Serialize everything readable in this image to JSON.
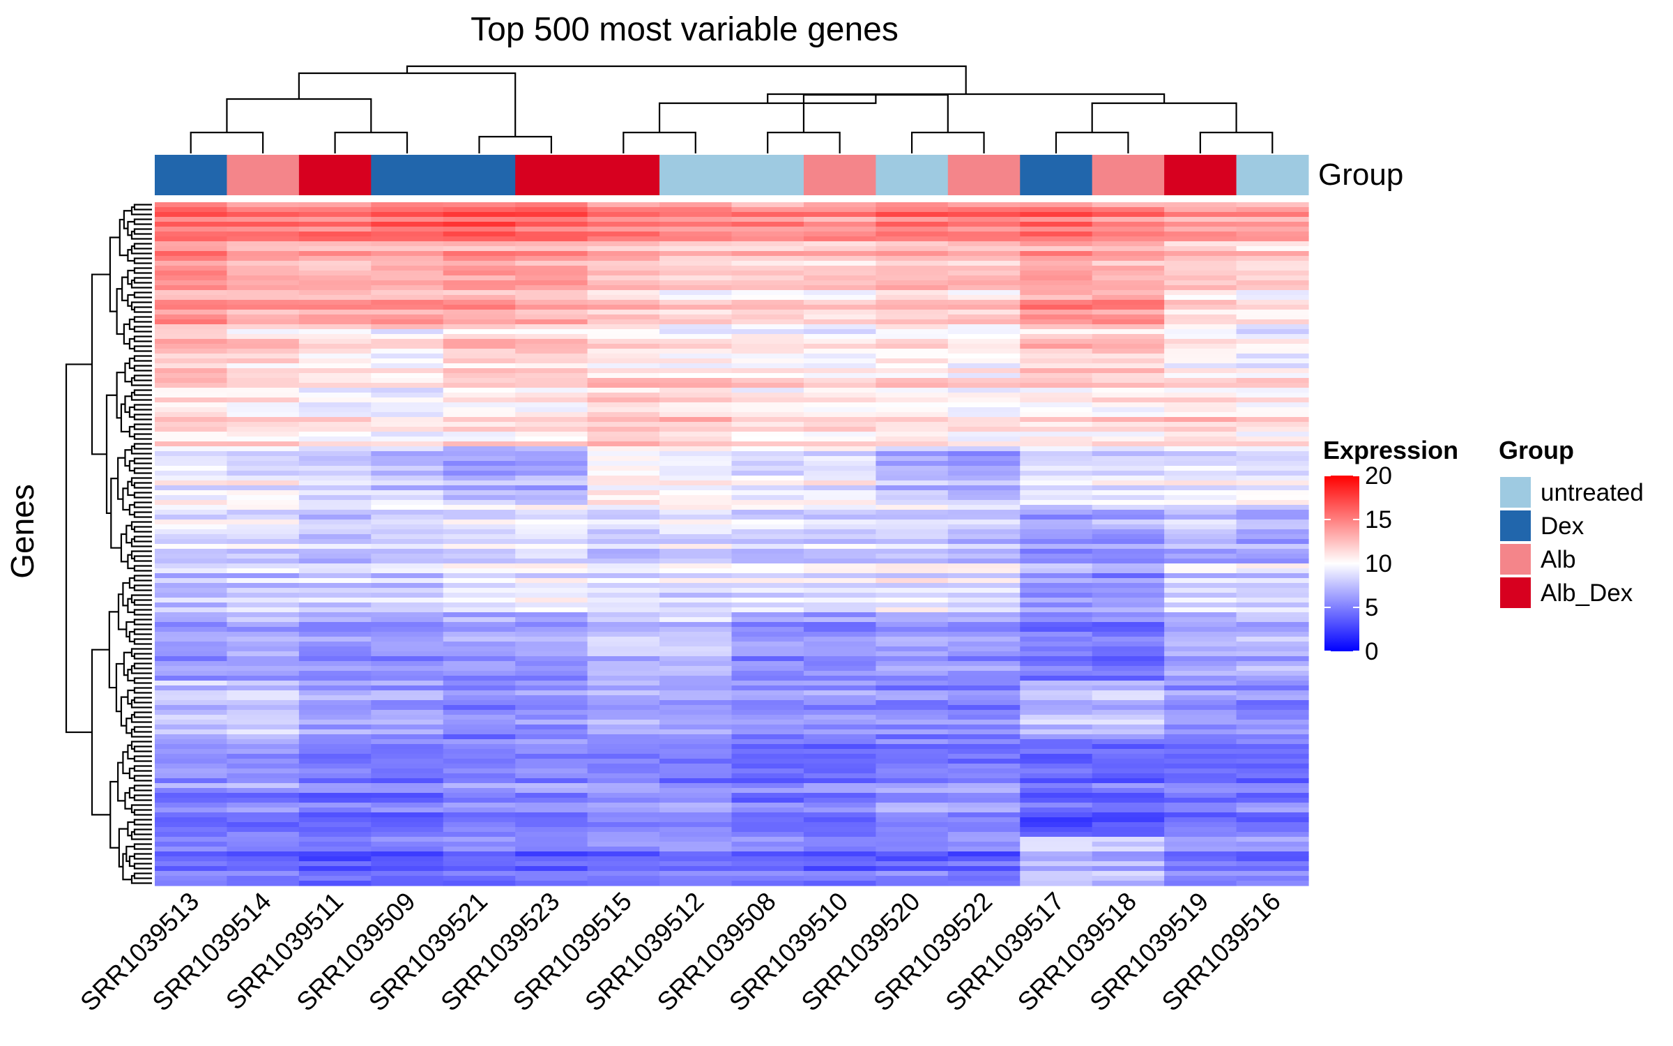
{
  "chart_data": {
    "type": "heatmap",
    "title": "Top 500 most variable genes",
    "ylabel": "Genes",
    "samples": [
      "SRR1039513",
      "SRR1039514",
      "SRR1039511",
      "SRR1039509",
      "SRR1039521",
      "SRR1039523",
      "SRR1039515",
      "SRR1039512",
      "SRR1039508",
      "SRR1039510",
      "SRR1039520",
      "SRR1039522",
      "SRR1039517",
      "SRR1039518",
      "SRR1039519",
      "SRR1039516"
    ],
    "sample_groups": [
      "Dex",
      "Alb",
      "Alb_Dex",
      "Dex",
      "Dex",
      "Alb_Dex",
      "Alb_Dex",
      "untreated",
      "untreated",
      "Alb",
      "untreated",
      "Alb",
      "Dex",
      "Alb",
      "Alb_Dex",
      "untreated"
    ],
    "annotation_track_label": "Group",
    "group_legend": {
      "title": "Group",
      "entries": [
        {
          "label": "untreated",
          "color": "#9ECAE1"
        },
        {
          "label": "Dex",
          "color": "#2166AC"
        },
        {
          "label": "Alb",
          "color": "#F4858A"
        },
        {
          "label": "Alb_Dex",
          "color": "#D7001F"
        }
      ]
    },
    "color_scale": {
      "title": "Expression",
      "min": 0,
      "max": 20,
      "ticks": [
        0,
        5,
        10,
        15,
        20
      ],
      "low_color": "#0000FF",
      "mid_color": "#FFFFFF",
      "high_color": "#FF0000",
      "midpoint": 10
    },
    "n_genes_rendered": 140,
    "row_blocks": [
      {
        "rows": 8,
        "base": [
          16.0,
          15.0,
          15.5,
          16.0,
          16.5,
          16.0,
          15.0,
          14.5,
          14.5,
          14.5,
          15.5,
          15.5,
          15.5,
          15.0,
          14.0,
          14.0
        ]
      },
      {
        "rows": 10,
        "base": [
          14.5,
          13.5,
          13.0,
          13.5,
          14.0,
          14.0,
          13.0,
          12.5,
          12.5,
          12.5,
          13.5,
          13.0,
          14.0,
          13.5,
          12.5,
          12.0
        ]
      },
      {
        "rows": 8,
        "base": [
          14.0,
          13.0,
          13.5,
          13.5,
          13.5,
          13.0,
          12.0,
          11.0,
          11.5,
          11.0,
          12.0,
          11.5,
          14.0,
          14.0,
          11.5,
          10.5
        ]
      },
      {
        "rows": 10,
        "base": [
          12.5,
          11.5,
          10.5,
          10.0,
          12.0,
          12.0,
          11.0,
          10.5,
          10.5,
          10.0,
          10.5,
          10.0,
          12.0,
          12.0,
          10.5,
          9.5
        ]
      },
      {
        "rows": 14,
        "base": [
          11.5,
          11.0,
          10.5,
          10.0,
          11.0,
          11.0,
          12.0,
          12.0,
          11.0,
          11.0,
          11.0,
          10.5,
          11.0,
          11.0,
          11.5,
          11.0
        ]
      },
      {
        "rows": 12,
        "base": [
          9.5,
          9.5,
          8.5,
          8.0,
          7.0,
          7.0,
          10.5,
          10.0,
          9.5,
          9.5,
          7.5,
          7.0,
          9.0,
          9.0,
          9.5,
          9.5
        ]
      },
      {
        "rows": 12,
        "base": [
          9.0,
          9.0,
          8.0,
          8.5,
          9.0,
          9.5,
          8.5,
          9.0,
          8.5,
          8.5,
          8.5,
          8.0,
          6.5,
          6.5,
          7.5,
          7.0
        ]
      },
      {
        "rows": 10,
        "base": [
          7.5,
          8.0,
          8.0,
          8.0,
          9.0,
          9.5,
          8.5,
          8.5,
          9.0,
          8.5,
          9.5,
          9.0,
          6.0,
          6.0,
          8.5,
          8.5
        ]
      },
      {
        "rows": 14,
        "base": [
          6.0,
          6.5,
          5.5,
          5.5,
          6.0,
          6.0,
          7.5,
          7.5,
          5.5,
          5.5,
          6.0,
          6.0,
          4.5,
          4.5,
          6.5,
          7.0
        ]
      },
      {
        "rows": 12,
        "base": [
          8.0,
          8.0,
          6.5,
          6.5,
          5.5,
          5.5,
          6.5,
          6.5,
          6.0,
          6.0,
          5.5,
          5.5,
          7.5,
          7.5,
          6.0,
          5.5
        ]
      },
      {
        "rows": 10,
        "base": [
          6.0,
          6.0,
          5.0,
          5.0,
          5.5,
          5.5,
          5.5,
          5.0,
          4.5,
          4.5,
          5.0,
          5.0,
          4.5,
          4.5,
          4.5,
          4.5
        ]
      },
      {
        "rows": 10,
        "base": [
          5.0,
          5.0,
          4.5,
          4.5,
          5.5,
          5.5,
          6.0,
          6.0,
          5.0,
          5.0,
          6.0,
          6.0,
          4.0,
          4.0,
          5.0,
          5.0
        ]
      },
      {
        "rows": 10,
        "base": [
          4.5,
          4.5,
          4.0,
          4.0,
          4.5,
          4.5,
          5.0,
          5.0,
          4.5,
          4.5,
          4.5,
          4.5,
          7.5,
          7.5,
          5.0,
          5.0
        ]
      }
    ]
  }
}
